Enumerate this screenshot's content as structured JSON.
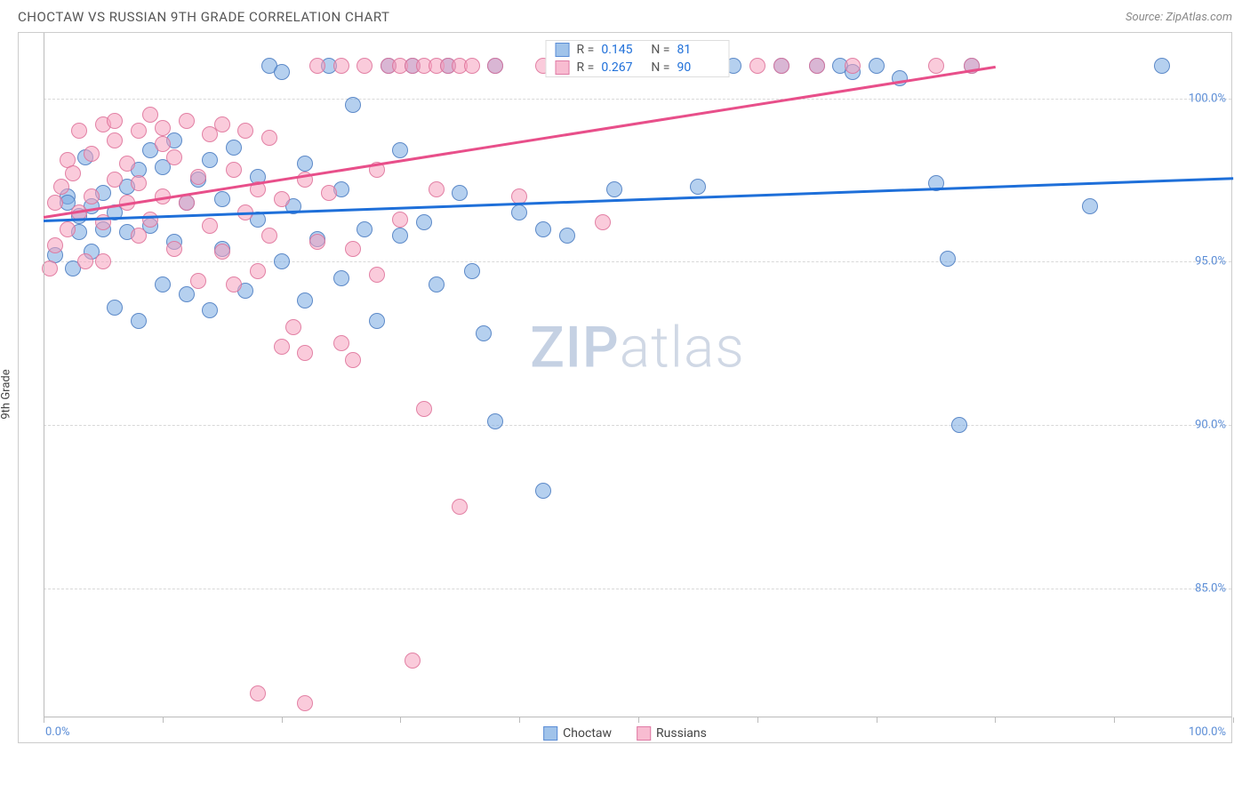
{
  "header": {
    "title": "CHOCTAW VS RUSSIAN 9TH GRADE CORRELATION CHART",
    "source_prefix": "Source: ",
    "source": "ZipAtlas.com"
  },
  "chart": {
    "type": "scatter",
    "y_axis_label": "9th Grade",
    "x_range": [
      0,
      100
    ],
    "y_range": [
      81,
      102
    ],
    "y_ticks": [
      85.0,
      90.0,
      95.0,
      100.0
    ],
    "y_tick_labels": [
      "85.0%",
      "90.0%",
      "95.0%",
      "100.0%"
    ],
    "x_ticks": [
      0,
      10,
      20,
      30,
      40,
      50,
      60,
      70,
      80,
      90,
      100
    ],
    "x_tick_label_left": "0.0%",
    "x_tick_label_right": "100.0%",
    "grid_color": "#d8d8d8",
    "background_color": "#ffffff",
    "marker_radius": 9,
    "series": [
      {
        "id": "choctaw",
        "label": "Choctaw",
        "color_fill": "rgba(120,170,225,0.55)",
        "color_stroke": "#5b8dd6",
        "trend_color": "#1e6fd9",
        "stats": {
          "R": "0.145",
          "N": "81"
        },
        "trendline": {
          "x1": 0,
          "y1": 96.3,
          "x2": 100,
          "y2": 97.6
        },
        "points": [
          [
            1,
            95.2
          ],
          [
            2,
            97.0
          ],
          [
            2,
            96.8
          ],
          [
            2.5,
            94.8
          ],
          [
            3,
            96.4
          ],
          [
            3,
            95.9
          ],
          [
            3.5,
            98.2
          ],
          [
            4,
            96.7
          ],
          [
            4,
            95.3
          ],
          [
            5,
            97.1
          ],
          [
            5,
            96.0
          ],
          [
            6,
            93.6
          ],
          [
            6,
            96.5
          ],
          [
            7,
            97.3
          ],
          [
            7,
            95.9
          ],
          [
            8,
            93.2
          ],
          [
            8,
            97.8
          ],
          [
            9,
            98.4
          ],
          [
            9,
            96.1
          ],
          [
            10,
            94.3
          ],
          [
            10,
            97.9
          ],
          [
            11,
            98.7
          ],
          [
            11,
            95.6
          ],
          [
            12,
            96.8
          ],
          [
            12,
            94.0
          ],
          [
            13,
            97.5
          ],
          [
            14,
            93.5
          ],
          [
            14,
            98.1
          ],
          [
            15,
            95.4
          ],
          [
            15,
            96.9
          ],
          [
            16,
            98.5
          ],
          [
            17,
            94.1
          ],
          [
            18,
            96.3
          ],
          [
            18,
            97.6
          ],
          [
            19,
            101.0
          ],
          [
            20,
            95.0
          ],
          [
            20,
            100.8
          ],
          [
            21,
            96.7
          ],
          [
            22,
            93.8
          ],
          [
            22,
            98.0
          ],
          [
            23,
            95.7
          ],
          [
            24,
            101.0
          ],
          [
            25,
            97.2
          ],
          [
            25,
            94.5
          ],
          [
            26,
            99.8
          ],
          [
            27,
            96.0
          ],
          [
            28,
            93.2
          ],
          [
            29,
            101.0
          ],
          [
            30,
            95.8
          ],
          [
            30,
            98.4
          ],
          [
            31,
            101.0
          ],
          [
            32,
            96.2
          ],
          [
            33,
            94.3
          ],
          [
            34,
            101.0
          ],
          [
            35,
            97.1
          ],
          [
            36,
            94.7
          ],
          [
            37,
            92.8
          ],
          [
            38,
            101.0
          ],
          [
            38,
            90.1
          ],
          [
            40,
            96.5
          ],
          [
            42,
            96.0
          ],
          [
            42,
            88.0
          ],
          [
            44,
            95.8
          ],
          [
            47,
            101.0
          ],
          [
            48,
            97.2
          ],
          [
            50,
            101.0
          ],
          [
            53,
            101.0
          ],
          [
            55,
            97.3
          ],
          [
            58,
            101.0
          ],
          [
            62,
            101.0
          ],
          [
            65,
            101.0
          ],
          [
            67,
            101.0
          ],
          [
            68,
            100.8
          ],
          [
            70,
            101.0
          ],
          [
            72,
            100.6
          ],
          [
            75,
            97.4
          ],
          [
            76,
            95.1
          ],
          [
            77,
            90.0
          ],
          [
            78,
            101.0
          ],
          [
            88,
            96.7
          ],
          [
            94,
            101.0
          ]
        ]
      },
      {
        "id": "russians",
        "label": "Russians",
        "color_fill": "rgba(245,160,190,0.55)",
        "color_stroke": "#e07aa5",
        "trend_color": "#e84f8a",
        "stats": {
          "R": "0.267",
          "N": "90"
        },
        "trendline": {
          "x1": 0,
          "y1": 96.4,
          "x2": 80,
          "y2": 101.0
        },
        "points": [
          [
            0.5,
            94.8
          ],
          [
            1,
            96.8
          ],
          [
            1,
            95.5
          ],
          [
            1.5,
            97.3
          ],
          [
            2,
            98.1
          ],
          [
            2,
            96.0
          ],
          [
            2.5,
            97.7
          ],
          [
            3,
            99.0
          ],
          [
            3,
            96.5
          ],
          [
            3.5,
            95.0
          ],
          [
            4,
            98.3
          ],
          [
            4,
            97.0
          ],
          [
            5,
            99.2
          ],
          [
            5,
            96.2
          ],
          [
            5,
            95.0
          ],
          [
            6,
            98.7
          ],
          [
            6,
            97.5
          ],
          [
            6,
            99.3
          ],
          [
            7,
            96.8
          ],
          [
            7,
            98.0
          ],
          [
            8,
            99.0
          ],
          [
            8,
            97.4
          ],
          [
            8,
            95.8
          ],
          [
            9,
            99.5
          ],
          [
            9,
            96.3
          ],
          [
            10,
            98.6
          ],
          [
            10,
            97.0
          ],
          [
            10,
            99.1
          ],
          [
            11,
            95.4
          ],
          [
            11,
            98.2
          ],
          [
            12,
            99.3
          ],
          [
            12,
            96.8
          ],
          [
            13,
            97.6
          ],
          [
            13,
            94.4
          ],
          [
            14,
            98.9
          ],
          [
            14,
            96.1
          ],
          [
            15,
            99.2
          ],
          [
            15,
            95.3
          ],
          [
            16,
            97.8
          ],
          [
            16,
            94.3
          ],
          [
            17,
            96.5
          ],
          [
            17,
            99.0
          ],
          [
            18,
            94.7
          ],
          [
            18,
            97.2
          ],
          [
            19,
            95.8
          ],
          [
            19,
            98.8
          ],
          [
            20,
            92.4
          ],
          [
            20,
            96.9
          ],
          [
            21,
            93.0
          ],
          [
            22,
            97.5
          ],
          [
            22,
            92.2
          ],
          [
            23,
            95.6
          ],
          [
            23,
            101.0
          ],
          [
            24,
            97.1
          ],
          [
            25,
            92.5
          ],
          [
            25,
            101.0
          ],
          [
            26,
            95.4
          ],
          [
            26,
            92.0
          ],
          [
            27,
            101.0
          ],
          [
            28,
            97.8
          ],
          [
            28,
            94.6
          ],
          [
            29,
            101.0
          ],
          [
            30,
            101.0
          ],
          [
            30,
            96.3
          ],
          [
            31,
            101.0
          ],
          [
            32,
            101.0
          ],
          [
            32,
            90.5
          ],
          [
            33,
            97.2
          ],
          [
            33,
            101.0
          ],
          [
            34,
            101.0
          ],
          [
            35,
            87.5
          ],
          [
            35,
            101.0
          ],
          [
            36,
            101.0
          ],
          [
            38,
            101.0
          ],
          [
            40,
            97.0
          ],
          [
            42,
            101.0
          ],
          [
            45,
            101.0
          ],
          [
            47,
            96.2
          ],
          [
            48,
            101.0
          ],
          [
            50,
            101.0
          ],
          [
            55,
            101.0
          ],
          [
            60,
            101.0
          ],
          [
            62,
            101.0
          ],
          [
            65,
            101.0
          ],
          [
            68,
            101.0
          ],
          [
            75,
            101.0
          ],
          [
            78,
            101.0
          ],
          [
            18,
            81.8
          ],
          [
            31,
            82.8
          ],
          [
            22,
            81.5
          ]
        ]
      }
    ],
    "watermark": {
      "zip": "ZIP",
      "atlas": "atlas"
    },
    "legend_labels": {
      "choctaw": "Choctaw",
      "russians": "Russians"
    },
    "stats_labels": {
      "R": "R =",
      "N": "N ="
    }
  }
}
